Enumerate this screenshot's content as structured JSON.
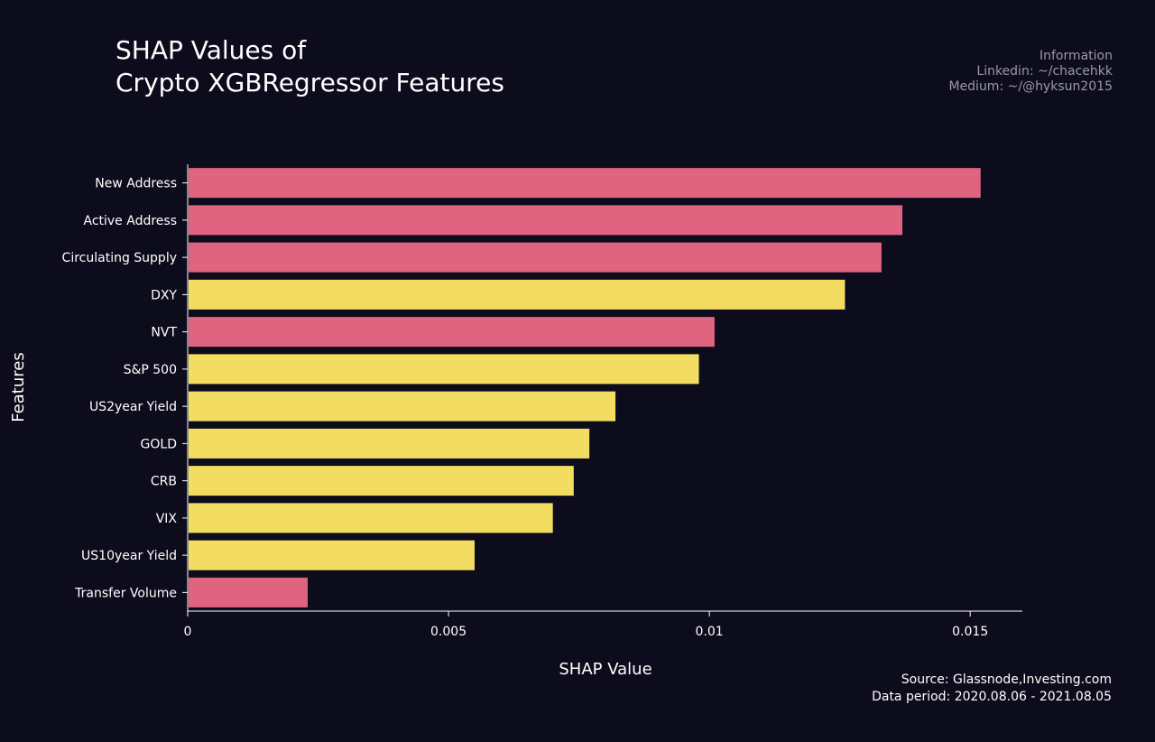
{
  "title_lines": [
    "SHAP Values of",
    "Crypto XGBRegressor Features"
  ],
  "info_lines": [
    "Information",
    "Linkedin: ~/chacehkk",
    "Medium: ~/@hyksun2015"
  ],
  "source_lines": [
    "Source: Glassnode,Investing.com",
    "Data period: 2020.08.06 - 2021.08.05"
  ],
  "colors": {
    "background": "#0d0c1d",
    "crypto": "#e06380",
    "macro": "#f2dc62",
    "axis": "#ffffff"
  },
  "chart_data": {
    "type": "bar",
    "orientation": "horizontal",
    "xlabel": "SHAP Value",
    "ylabel": "Features",
    "xlim": [
      0,
      0.016
    ],
    "xticks": [
      0,
      0.005,
      0.01,
      0.015
    ],
    "xtick_labels": [
      "0",
      "0.005",
      "0.01",
      "0.015"
    ],
    "grid": false,
    "categories": [
      "New Address",
      "Active Address",
      "Circulating Supply",
      "DXY",
      "NVT",
      "S&P 500",
      "US2year Yield",
      "GOLD",
      "CRB",
      "VIX",
      "US10year Yield",
      "Transfer Volume"
    ],
    "values": [
      0.0152,
      0.0137,
      0.0133,
      0.0126,
      0.0101,
      0.0098,
      0.0082,
      0.0077,
      0.0074,
      0.007,
      0.0055,
      0.0023
    ],
    "bar_groups": [
      "crypto",
      "crypto",
      "crypto",
      "macro",
      "crypto",
      "macro",
      "macro",
      "macro",
      "macro",
      "macro",
      "macro",
      "crypto"
    ]
  }
}
